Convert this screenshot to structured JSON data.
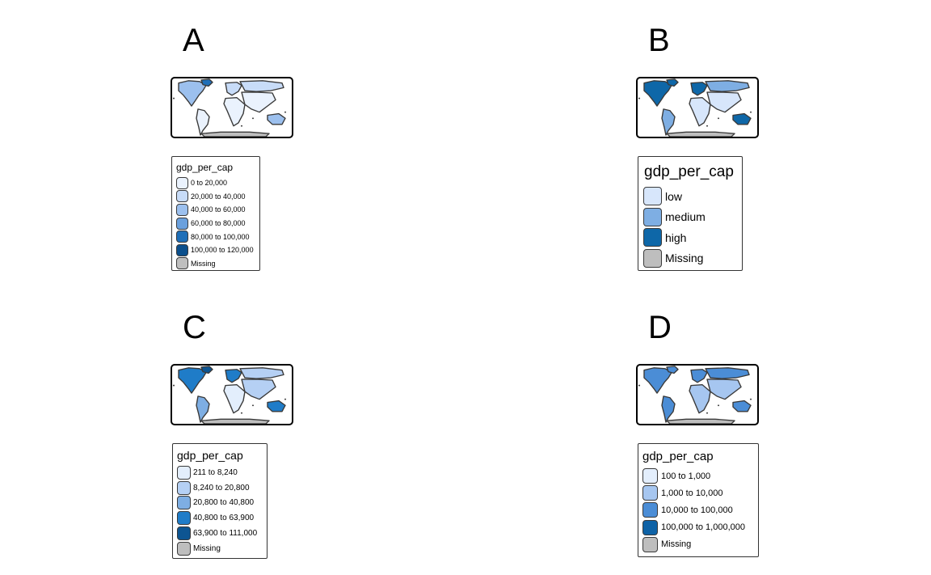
{
  "panels": [
    {
      "label": "A",
      "legend": {
        "title": "gdp_per_cap",
        "items": [
          {
            "label": "0 to 20,000",
            "color": "#eaf2fd"
          },
          {
            "label": "20,000 to 40,000",
            "color": "#c8dcf8"
          },
          {
            "label": "40,000 to 60,000",
            "color": "#9cc0ee"
          },
          {
            "label": "60,000 to 80,000",
            "color": "#6aa0dd"
          },
          {
            "label": "80,000 to 100,000",
            "color": "#1f6fb8"
          },
          {
            "label": "100,000 to 120,000",
            "color": "#0b4f8c"
          },
          {
            "label": "Missing",
            "color": "#bebebe"
          }
        ]
      }
    },
    {
      "label": "B",
      "legend": {
        "title": "gdp_per_cap",
        "items": [
          {
            "label": "low",
            "color": "#d7e6fb"
          },
          {
            "label": "medium",
            "color": "#7eaee3"
          },
          {
            "label": "high",
            "color": "#0e67a8"
          },
          {
            "label": "Missing",
            "color": "#bebebe"
          }
        ]
      }
    },
    {
      "label": "C",
      "legend": {
        "title": "gdp_per_cap",
        "items": [
          {
            "label": "211 to 8,240",
            "color": "#e3eefc"
          },
          {
            "label": "8,240 to 20,800",
            "color": "#b5d0f4"
          },
          {
            "label": "20,800 to 40,800",
            "color": "#7eaee3"
          },
          {
            "label": "40,800 to 63,900",
            "color": "#1f7cc8"
          },
          {
            "label": "63,900 to 111,000",
            "color": "#0d5592"
          },
          {
            "label": "Missing",
            "color": "#bebebe"
          }
        ]
      }
    },
    {
      "label": "D",
      "legend": {
        "title": "gdp_per_cap",
        "items": [
          {
            "label": "100 to 1,000",
            "color": "#e3eefc"
          },
          {
            "label": "1,000 to 10,000",
            "color": "#a6c6f0"
          },
          {
            "label": "10,000 to 100,000",
            "color": "#4b8dd6"
          },
          {
            "label": "100,000 to 1,000,000",
            "color": "#0e62a6"
          },
          {
            "label": "Missing",
            "color": "#bebebe"
          }
        ]
      }
    }
  ],
  "maps": [
    {
      "na": "#9cc0ee",
      "sa": "#eaf2fd",
      "eu": "#c8dcf8",
      "af": "#eaf2fd",
      "ru": "#c8dcf8",
      "as": "#eaf2fd",
      "au": "#9cc0ee",
      "an": "#bebebe",
      "gl": "#1f6fb8"
    },
    {
      "na": "#0e67a8",
      "sa": "#7eaee3",
      "eu": "#0e67a8",
      "af": "#d7e6fb",
      "ru": "#7eaee3",
      "as": "#d7e6fb",
      "au": "#0e67a8",
      "an": "#bebebe",
      "gl": "#0e67a8"
    },
    {
      "na": "#1f7cc8",
      "sa": "#7eaee3",
      "eu": "#1f7cc8",
      "af": "#e3eefc",
      "ru": "#b5d0f4",
      "as": "#b5d0f4",
      "au": "#1f7cc8",
      "an": "#bebebe",
      "gl": "#0d5592"
    },
    {
      "na": "#4b8dd6",
      "sa": "#4b8dd6",
      "eu": "#4b8dd6",
      "af": "#a6c6f0",
      "ru": "#4b8dd6",
      "as": "#a6c6f0",
      "au": "#4b8dd6",
      "an": "#bebebe",
      "gl": "#4b8dd6"
    }
  ]
}
